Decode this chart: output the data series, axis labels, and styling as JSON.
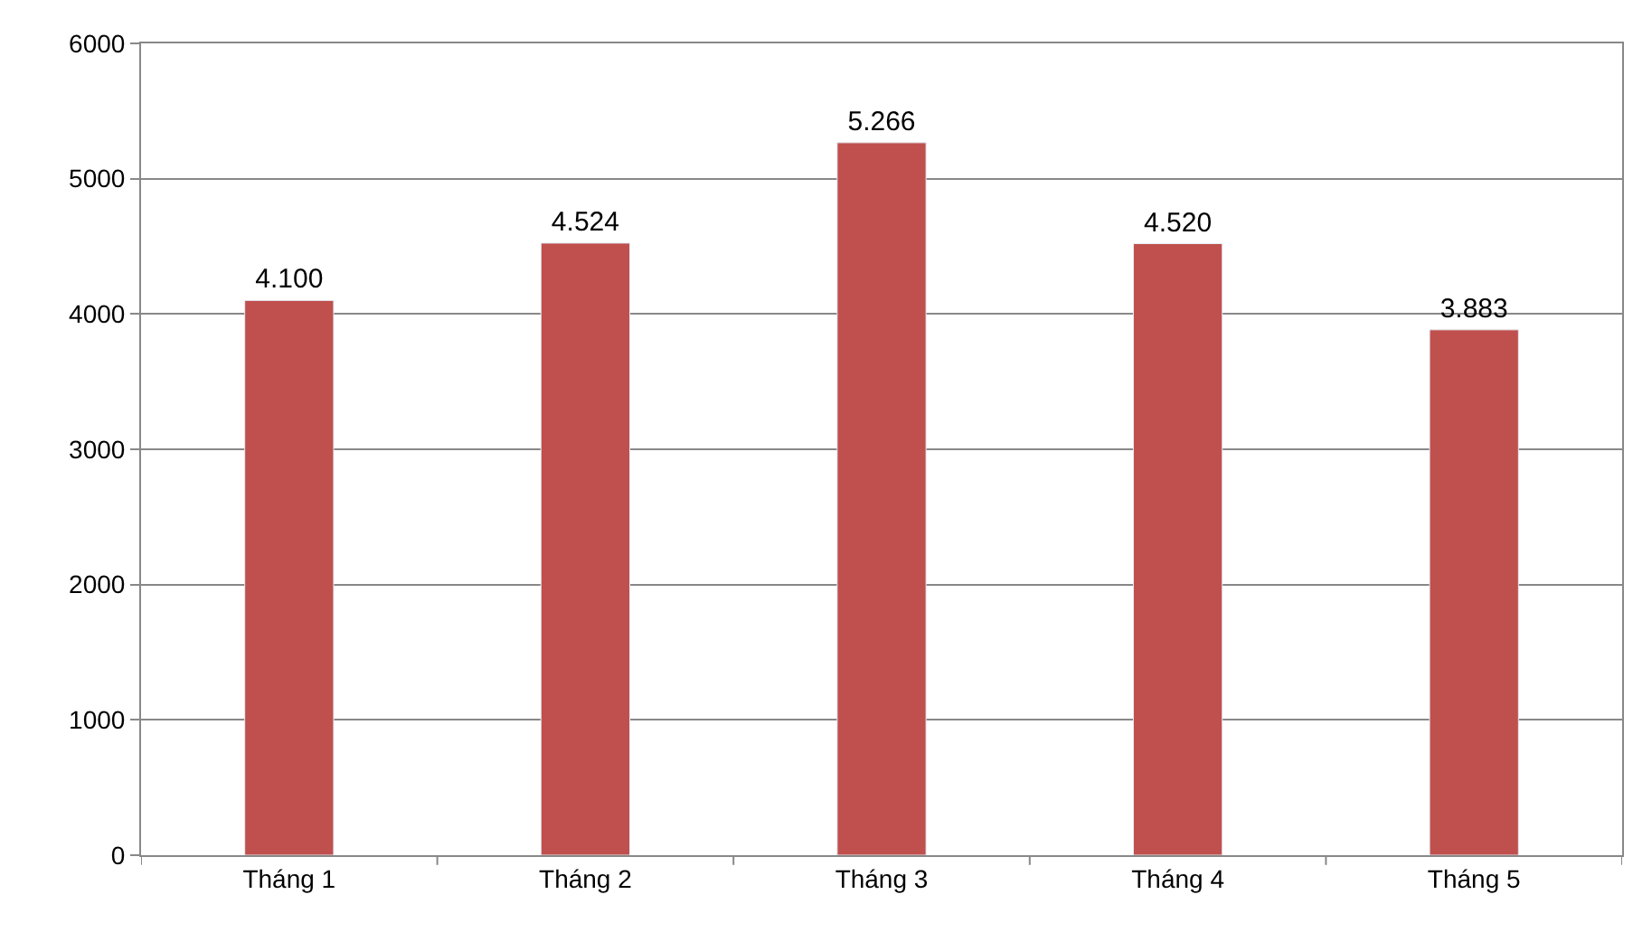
{
  "chart_data": {
    "type": "bar",
    "categories": [
      "Tháng 1",
      "Tháng 2",
      "Tháng 3",
      "Tháng 4",
      "Tháng 5"
    ],
    "series": [
      {
        "color": "#c0504d",
        "values": [
          4100,
          4524,
          5266,
          4520,
          3883
        ],
        "value_labels": [
          "4.100",
          "4.524",
          "5.266",
          "4.520",
          "3.883"
        ]
      }
    ],
    "ylim": [
      0,
      6000
    ],
    "yticks": [
      0,
      1000,
      2000,
      3000,
      4000,
      5000,
      6000
    ],
    "grid": "y"
  }
}
